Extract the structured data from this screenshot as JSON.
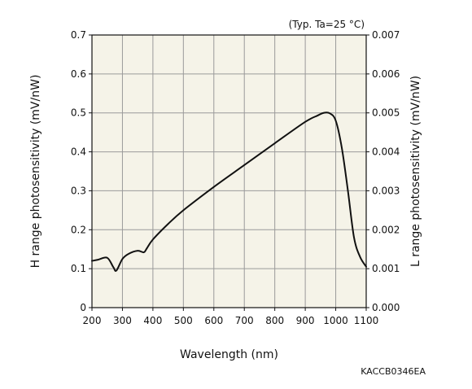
{
  "chart_data": {
    "type": "line",
    "condition_note": "(Typ. Ta=25 °C)",
    "xlabel": "Wavelength (nm)",
    "ylabel_left": "H range photosensitivity (mV/nW)",
    "ylabel_right": "L range photosensitivity (mV/nW)",
    "xlim": [
      200,
      1100
    ],
    "ylim_left": [
      0,
      0.7
    ],
    "ylim_right": [
      0,
      0.007
    ],
    "x_ticks": [
      200,
      300,
      400,
      500,
      600,
      700,
      800,
      900,
      1000,
      1100
    ],
    "y_ticks_left": [
      "0",
      "0.1",
      "0.2",
      "0.3",
      "0.4",
      "0.5",
      "0.6",
      "0.7"
    ],
    "y_ticks_right": [
      "0.000",
      "0.001",
      "0.002",
      "0.003",
      "0.004",
      "0.005",
      "0.006",
      "0.007"
    ],
    "grid": true,
    "series": [
      {
        "x": [
          200,
          220,
          250,
          270,
          280,
          300,
          320,
          350,
          370,
          380,
          400,
          450,
          500,
          600,
          700,
          800,
          900,
          940,
          960,
          980,
          1000,
          1020,
          1040,
          1060,
          1080,
          1100
        ],
        "y": [
          0.12,
          0.123,
          0.128,
          0.104,
          0.095,
          0.125,
          0.138,
          0.146,
          0.142,
          0.152,
          0.175,
          0.215,
          0.25,
          0.31,
          0.366,
          0.422,
          0.477,
          0.493,
          0.5,
          0.499,
          0.48,
          0.41,
          0.3,
          0.18,
          0.13,
          0.105
        ]
      }
    ],
    "document_code": "KACCB0346EA"
  },
  "colors": {
    "plot_background": "#f5f3e8",
    "grid": "#9a9a9a",
    "axis": "#111111",
    "line": "#111111"
  }
}
